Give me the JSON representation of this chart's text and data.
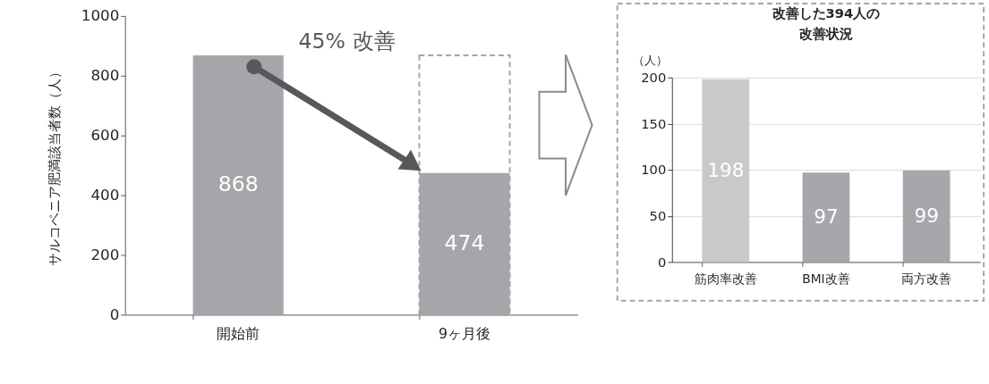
{
  "chart_data": [
    {
      "type": "bar",
      "ylabel": "サルコペニア肥満該当者数（人）",
      "categories": [
        "開始前",
        "9ヶ月後"
      ],
      "ylim": [
        0,
        1000
      ],
      "yticks": [
        0,
        200,
        400,
        600,
        800,
        1000
      ],
      "grid": false,
      "annotations": [
        "45% 改善"
      ],
      "series": [
        {
          "color": "#a6a6a6",
          "values": [
            null,
            868
          ],
          "line_style": "dashed"
        },
        {
          "color": "#a6a6aa",
          "values": [
            868,
            474
          ],
          "value_labels": [
            "868",
            "474"
          ]
        }
      ]
    },
    {
      "type": "bar",
      "title": "改善した394人の改善状況",
      "ylabel": "（人）",
      "categories": [
        "筋肉率改善",
        "BMI改善",
        "両方改善"
      ],
      "values": [
        198,
        97,
        99
      ],
      "colors": [
        "#c8c9cb",
        "#a6a7ab",
        "#a6a7ab"
      ],
      "ylim": [
        0,
        200
      ],
      "yticks": [
        0,
        50,
        100,
        150,
        200
      ],
      "grid": "y",
      "data_labels": true
    }
  ]
}
